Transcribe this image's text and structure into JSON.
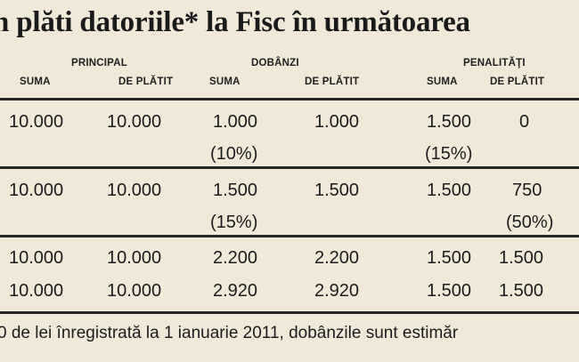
{
  "title": "n plăti datoriile* la Fisc în următoarea",
  "headers": {
    "principal": "PRINCIPAL",
    "dobanzi": "DOBÂNZI",
    "penalitati": "PENALITĂŢI",
    "suma": "SUMA",
    "de_platit": "DE PLĂTIT"
  },
  "rows": [
    {
      "principal_suma": "10.000",
      "principal_de_platit": "10.000",
      "dobanzi_suma": "1.000",
      "dobanzi_suma_pct": "(10%)",
      "dobanzi_de_platit": "1.000",
      "penalitati_suma": "1.500",
      "penalitati_suma_pct": "(15%)",
      "penalitati_de_platit": "0",
      "penalitati_de_platit_pct": ""
    },
    {
      "principal_suma": "10.000",
      "principal_de_platit": "10.000",
      "dobanzi_suma": "1.500",
      "dobanzi_suma_pct": "(15%)",
      "dobanzi_de_platit": "1.500",
      "penalitati_suma": "1.500",
      "penalitati_suma_pct": "",
      "penalitati_de_platit": "750",
      "penalitati_de_platit_pct": "(50%)"
    },
    {
      "principal_suma": "10.000",
      "principal_de_platit": "10.000",
      "dobanzi_suma": "2.200",
      "dobanzi_suma_pct": "",
      "dobanzi_de_platit": "2.200",
      "penalitati_suma": "1.500",
      "penalitati_suma_pct": "",
      "penalitati_de_platit": "1.500",
      "penalitati_de_platit_pct": ""
    },
    {
      "principal_suma": "10.000",
      "principal_de_platit": "10.000",
      "dobanzi_suma": "2.920",
      "dobanzi_suma_pct": "",
      "dobanzi_de_platit": "2.920",
      "penalitati_suma": "1.500",
      "penalitati_suma_pct": "",
      "penalitati_de_platit": "1.500",
      "penalitati_de_platit_pct": ""
    }
  ],
  "footnote": "0 de lei înregistrată la 1 ianuarie 2011, dobânzile sunt estimăr"
}
